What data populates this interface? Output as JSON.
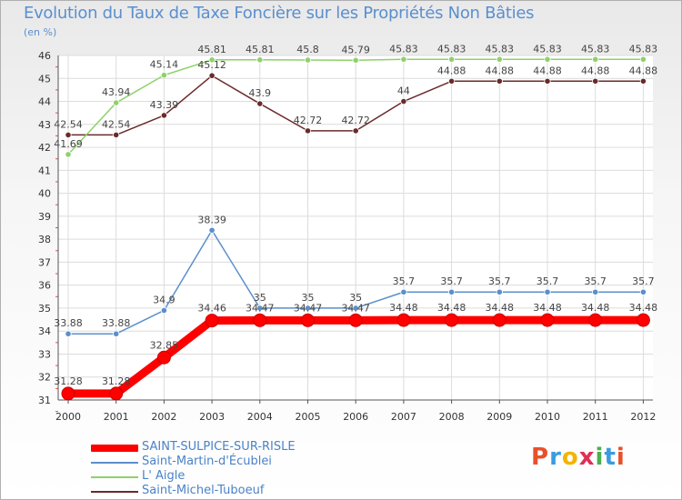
{
  "title": "Evolution du Taux de Taxe Foncière sur les Propriétés Non Bâties",
  "unit_label": "(en %)",
  "brand": {
    "text": "Proxiti",
    "colors": [
      "#e8502b",
      "#3a9be0",
      "#f4b400",
      "#e02f57",
      "#4cae4c",
      "#3a9be0",
      "#e8502b"
    ]
  },
  "chart_data": {
    "type": "line",
    "title": "Evolution du Taux de Taxe Foncière sur les Propriétés Non Bâties",
    "ylabel": "(en %)",
    "xlabel": "",
    "ylim": [
      31,
      46
    ],
    "yticks": [
      31,
      32,
      33,
      34,
      35,
      36,
      37,
      38,
      39,
      40,
      41,
      42,
      43,
      44,
      45,
      46
    ],
    "x": [
      "2000",
      "2001",
      "2002",
      "2003",
      "2004",
      "2005",
      "2006",
      "2007",
      "2008",
      "2009",
      "2010",
      "2011",
      "2012"
    ],
    "legend_position": "bottom-left",
    "series": [
      {
        "name": "SAINT-SULPICE-SUR-RISLE",
        "color": "#ff0000",
        "line_width": "thick",
        "values": [
          31.28,
          31.28,
          32.85,
          34.46,
          34.47,
          34.47,
          34.47,
          34.48,
          34.48,
          34.48,
          34.48,
          34.48,
          34.48
        ],
        "labels": [
          "31.28",
          "31.28",
          "32.85",
          "34.46",
          "34.47",
          "34.47",
          "34.47",
          "34.48",
          "34.48",
          "34.48",
          "34.48",
          "34.48",
          "34.48"
        ]
      },
      {
        "name": "Saint-Martin-d'Écublei",
        "color": "#5b8fcc",
        "line_width": "thin",
        "values": [
          33.88,
          33.88,
          34.9,
          38.39,
          35,
          35,
          35,
          35.7,
          35.7,
          35.7,
          35.7,
          35.7,
          35.7
        ],
        "labels": [
          "33.88",
          "33.88",
          "34.9",
          "38.39",
          "35",
          "35",
          "35",
          "35.7",
          "35.7",
          "35.7",
          "35.7",
          "35.7",
          "35.7"
        ]
      },
      {
        "name": "L' Aigle",
        "color": "#8fd16a",
        "line_width": "thin",
        "values": [
          41.69,
          43.94,
          45.14,
          45.81,
          45.81,
          45.8,
          45.79,
          45.83,
          45.83,
          45.83,
          45.83,
          45.83,
          45.83
        ],
        "labels": [
          "41.69",
          "43.94",
          "45.14",
          "45.81",
          "45.81",
          "45.8",
          "45.79",
          "45.83",
          "45.83",
          "45.83",
          "45.83",
          "45.83",
          "45.83"
        ]
      },
      {
        "name": "Saint-Michel-Tuboeuf",
        "color": "#6b2a2a",
        "line_width": "thin",
        "values": [
          42.54,
          42.54,
          43.39,
          45.12,
          43.9,
          42.72,
          42.72,
          44,
          44.88,
          44.88,
          44.88,
          44.88,
          44.88
        ],
        "labels": [
          "42.54",
          "42.54",
          "43.39",
          "45.12",
          "43.9",
          "42.72",
          "42.72",
          "44",
          "44.88",
          "44.88",
          "44.88",
          "44.88",
          "44.88"
        ]
      }
    ]
  }
}
